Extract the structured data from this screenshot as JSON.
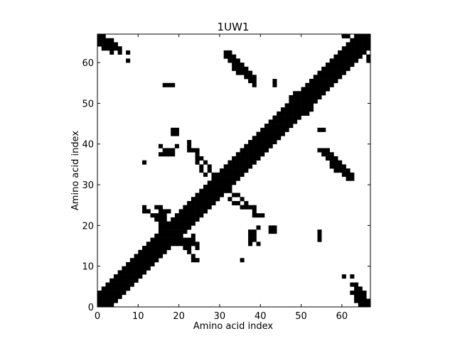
{
  "chart_data": {
    "type": "heatmap",
    "title": "1UW1",
    "xlabel": "Amino acid index",
    "ylabel": "Amino acid index",
    "n": 67,
    "xlim": [
      0,
      67
    ],
    "ylim": [
      0,
      67
    ],
    "xticks": [
      0,
      10,
      20,
      30,
      40,
      50,
      60
    ],
    "yticks": [
      0,
      10,
      20,
      30,
      40,
      50,
      60
    ],
    "colors": {
      "contact": "#000000",
      "background": "#ffffff"
    },
    "band_half_width": 3,
    "contacts": [
      [
        0,
        64
      ],
      [
        0,
        65
      ],
      [
        1,
        63
      ],
      [
        1,
        64
      ],
      [
        2,
        63
      ],
      [
        2,
        64
      ],
      [
        3,
        63
      ],
      [
        3,
        64
      ],
      [
        3,
        62
      ],
      [
        4,
        63
      ],
      [
        7,
        62
      ],
      [
        7,
        60
      ],
      [
        16,
        54
      ],
      [
        17,
        54
      ],
      [
        18,
        43
      ],
      [
        19,
        43
      ],
      [
        15,
        39
      ],
      [
        16,
        38
      ],
      [
        16,
        37
      ],
      [
        17,
        38
      ],
      [
        17,
        37
      ],
      [
        18,
        37
      ],
      [
        18,
        38
      ],
      [
        11,
        35
      ],
      [
        22,
        39
      ],
      [
        23,
        38
      ],
      [
        24,
        37
      ],
      [
        24,
        38
      ],
      [
        25,
        36
      ],
      [
        26,
        35
      ],
      [
        27,
        34
      ],
      [
        27,
        33
      ],
      [
        28,
        32
      ],
      [
        28,
        31
      ],
      [
        31,
        62
      ],
      [
        31,
        61
      ],
      [
        32,
        61
      ],
      [
        32,
        60
      ],
      [
        33,
        59
      ],
      [
        33,
        58
      ],
      [
        34,
        58
      ],
      [
        34,
        57
      ],
      [
        35,
        57
      ],
      [
        36,
        56
      ],
      [
        37,
        56
      ],
      [
        37,
        55
      ],
      [
        38,
        55
      ],
      [
        38,
        54
      ],
      [
        43,
        55
      ],
      [
        11,
        24
      ],
      [
        12,
        23
      ],
      [
        13,
        22
      ],
      [
        14,
        22
      ],
      [
        14,
        21
      ],
      [
        15,
        20
      ],
      [
        15,
        19
      ],
      [
        16,
        19
      ],
      [
        16,
        18
      ],
      [
        17,
        18
      ],
      [
        17,
        17
      ],
      [
        16,
        20
      ],
      [
        16,
        21
      ],
      [
        16,
        22
      ],
      [
        16,
        23
      ],
      [
        17,
        23
      ],
      [
        20,
        15
      ],
      [
        21,
        15
      ],
      [
        22,
        15
      ],
      [
        23,
        15
      ],
      [
        24,
        15
      ],
      [
        24,
        14
      ],
      [
        23,
        12
      ],
      [
        23,
        11
      ],
      [
        24,
        11
      ],
      [
        32,
        26
      ],
      [
        33,
        25
      ],
      [
        34,
        25
      ],
      [
        35,
        24
      ],
      [
        36,
        24
      ],
      [
        37,
        24
      ],
      [
        38,
        24
      ],
      [
        38,
        23
      ],
      [
        38,
        22
      ],
      [
        39,
        22
      ],
      [
        40,
        22
      ],
      [
        38,
        18
      ],
      [
        38,
        17
      ],
      [
        38,
        16
      ],
      [
        37,
        16
      ],
      [
        37,
        15
      ],
      [
        39,
        19
      ],
      [
        42,
        19
      ],
      [
        42,
        18
      ],
      [
        35,
        11
      ],
      [
        48,
        52
      ],
      [
        47,
        51
      ],
      [
        48,
        51
      ],
      [
        47,
        50
      ],
      [
        50,
        49
      ],
      [
        51,
        49
      ],
      [
        51,
        48
      ],
      [
        54,
        43
      ],
      [
        55,
        38
      ],
      [
        56,
        38
      ],
      [
        56,
        37
      ],
      [
        57,
        37
      ],
      [
        57,
        36
      ],
      [
        58,
        36
      ],
      [
        58,
        35
      ],
      [
        59,
        35
      ],
      [
        59,
        34
      ],
      [
        60,
        34
      ],
      [
        60,
        33
      ],
      [
        61,
        33
      ],
      [
        61,
        32
      ],
      [
        62,
        32
      ],
      [
        54,
        18
      ],
      [
        54,
        17
      ],
      [
        60,
        7
      ],
      [
        62,
        7
      ],
      [
        62,
        5
      ],
      [
        63,
        5
      ],
      [
        63,
        4
      ],
      [
        64,
        4
      ],
      [
        64,
        3
      ],
      [
        65,
        3
      ],
      [
        65,
        2
      ],
      [
        65,
        1
      ],
      [
        66,
        1
      ],
      [
        66,
        0
      ],
      [
        61,
        66
      ],
      [
        63,
        66
      ],
      [
        64,
        66
      ],
      [
        60,
        66
      ]
    ]
  }
}
